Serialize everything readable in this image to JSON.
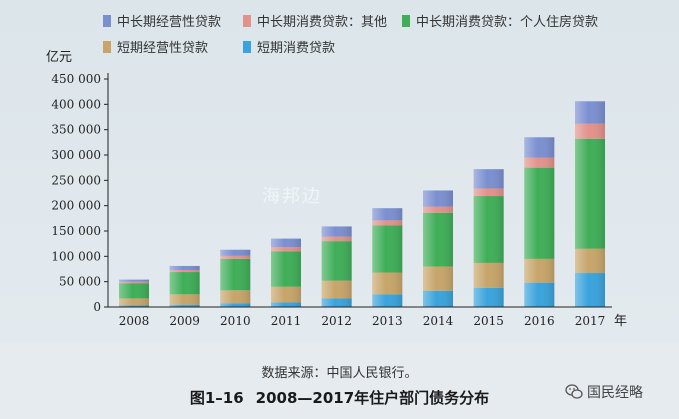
{
  "chart_data": {
    "type": "bar",
    "stacked": true,
    "categories": [
      "2008",
      "2009",
      "2010",
      "2011",
      "2012",
      "2013",
      "2014",
      "2015",
      "2016",
      "2017"
    ],
    "x_unit": "年",
    "y_unit": "亿元",
    "ylim": [
      0,
      450000
    ],
    "yticks": [
      0,
      50000,
      100000,
      150000,
      200000,
      250000,
      300000,
      350000,
      400000,
      450000
    ],
    "ytick_labels": [
      "0",
      "50 000",
      "100 000",
      "150 000",
      "200 000",
      "250 000",
      "300 000",
      "350 000",
      "400 000",
      "450 000"
    ],
    "legend_placement": "top",
    "grid": false,
    "series": [
      {
        "name": "短期消费贷款",
        "color": "#3aa3dc",
        "values": [
          3000,
          4000,
          7000,
          9000,
          17000,
          25000,
          32000,
          38000,
          48000,
          67000
        ]
      },
      {
        "name": "短期经营性贷款",
        "color": "#c7a56a",
        "values": [
          14000,
          21000,
          26000,
          31000,
          35000,
          43000,
          48000,
          49000,
          47000,
          48000
        ]
      },
      {
        "name": "中长期消费贷款：个人住房贷款",
        "color": "#3fae58",
        "values": [
          30000,
          44000,
          62000,
          70000,
          78000,
          93000,
          106000,
          132000,
          180000,
          217000
        ]
      },
      {
        "name": "中长期消费贷款：其他",
        "color": "#e2928b",
        "values": [
          3000,
          4000,
          6000,
          8000,
          9000,
          10000,
          12000,
          15000,
          20000,
          30000
        ]
      },
      {
        "name": "中长期经营性贷款",
        "color": "#7b8fd0",
        "values": [
          4000,
          8000,
          12000,
          17000,
          20000,
          24000,
          32000,
          38000,
          40000,
          44000
        ]
      }
    ]
  },
  "legend_rows": [
    [
      "中长期经营性贷款",
      "中长期消费贷款：其他",
      "中长期消费贷款：个人住房贷款"
    ],
    [
      "短期经营性贷款",
      "短期消费贷款"
    ]
  ],
  "watermark_text": "海邦边",
  "source_text": "数据来源：中国人民银行。",
  "figure_number": "图1–16",
  "figure_title": "2008—2017年住户部门债务分布",
  "publisher": "国民经略"
}
